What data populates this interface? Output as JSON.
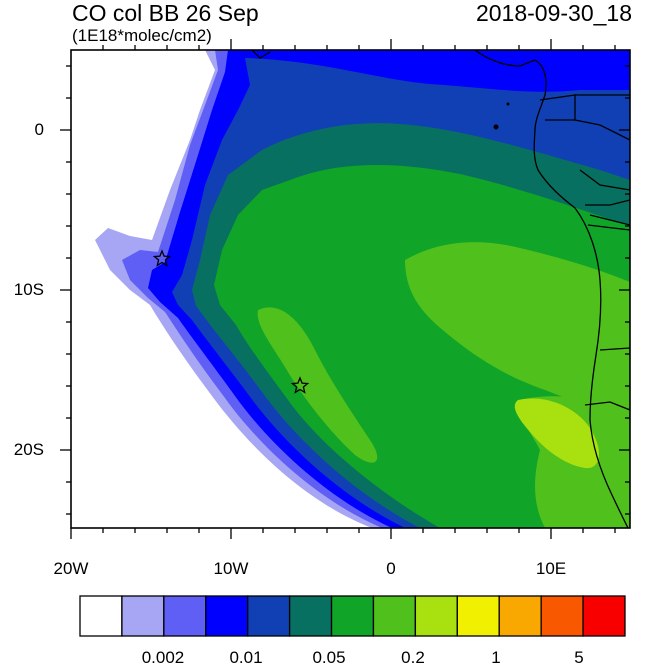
{
  "header": {
    "title": "CO col BB 26 Sep",
    "subtitle": "(1E18*molec/cm2)",
    "timestamp": "2018-09-30_18"
  },
  "axes": {
    "lat_labels": [
      "0",
      "10S",
      "20S"
    ],
    "lon_labels": [
      "20W",
      "10W",
      "0",
      "10E"
    ],
    "lon_range": [
      "20W",
      "15E"
    ],
    "lat_range": [
      "25S",
      "5N"
    ]
  },
  "colorbar": {
    "colors": [
      "#ffffff",
      "#a6a6f5",
      "#5f5ff5",
      "#0000ff",
      "#1040b4",
      "#087060",
      "#10a428",
      "#50c01c",
      "#a8e010",
      "#f0f000",
      "#f8a800",
      "#f85800",
      "#f80000"
    ],
    "labels": [
      "0.002",
      "0.01",
      "0.05",
      "0.2",
      "1",
      "5"
    ]
  },
  "markers": [
    {
      "name": "star-marker-northwest",
      "lon": -14.3,
      "lat": -8.0
    },
    {
      "name": "star-marker-south",
      "lon": -5.7,
      "lat": -16.0
    }
  ]
}
